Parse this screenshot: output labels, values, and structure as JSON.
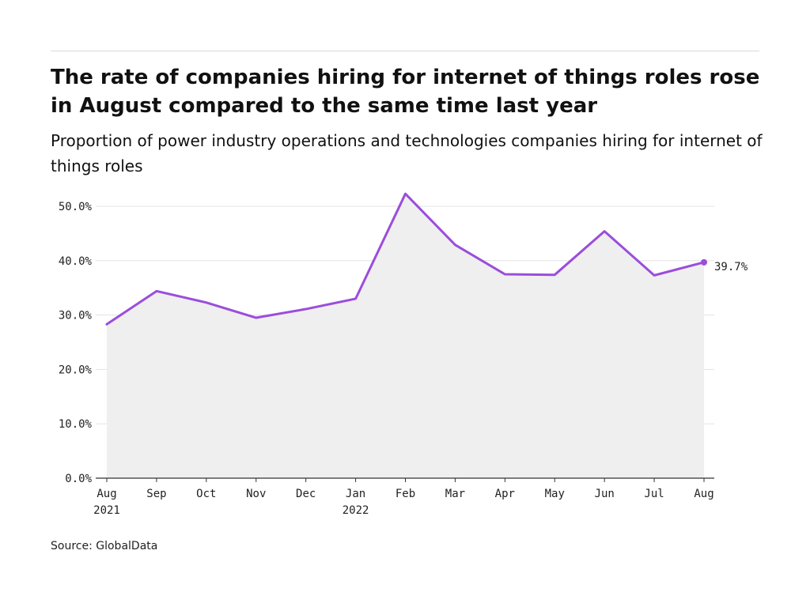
{
  "title": "The rate of companies hiring for internet of things roles rose in August compared to the same time last year",
  "subtitle": "Proportion of power industry operations and technologies companies hiring for internet of things roles",
  "source": "Source: GlobalData",
  "chart_data": {
    "type": "area",
    "categories": [
      [
        "Aug",
        "2021"
      ],
      [
        "Sep"
      ],
      [
        "Oct"
      ],
      [
        "Nov"
      ],
      [
        "Dec"
      ],
      [
        "Jan",
        "2022"
      ],
      [
        "Feb"
      ],
      [
        "Mar"
      ],
      [
        "Apr"
      ],
      [
        "May"
      ],
      [
        "Jun"
      ],
      [
        "Jul"
      ],
      [
        "Aug"
      ]
    ],
    "values": [
      28.3,
      34.4,
      32.3,
      29.5,
      31.1,
      33.0,
      52.3,
      42.9,
      37.5,
      37.4,
      45.4,
      37.3,
      39.7
    ],
    "y_ticks": [
      "0.0%",
      "10.0%",
      "20.0%",
      "30.0%",
      "40.0%",
      "50.0%"
    ],
    "ylim": [
      0,
      50
    ],
    "end_label": "39.7%",
    "grid": true,
    "colors": {
      "line": "#9b4ddb",
      "area": "#efefef",
      "grid": "#e3e3e3",
      "axis": "#333333"
    }
  }
}
